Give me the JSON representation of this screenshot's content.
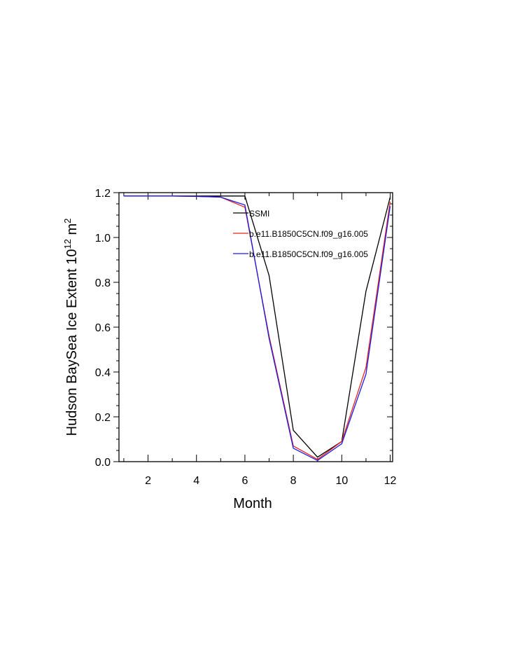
{
  "chart_data": {
    "type": "line",
    "title": "",
    "xlabel": "Month",
    "ylabel_main": "Hudson BaySea Ice Extent 10",
    "ylabel_sup": "12",
    "ylabel_unit": " m",
    "ylabel_unit_sup": "2",
    "xlim": [
      0.8,
      12.1
    ],
    "ylim": [
      0.0,
      1.2
    ],
    "xticks": [
      2,
      4,
      6,
      8,
      10,
      12
    ],
    "xtick_labels": [
      "2",
      "4",
      "6",
      "8",
      "10",
      "12"
    ],
    "yticks": [
      0.0,
      0.2,
      0.4,
      0.6,
      0.8,
      1.0,
      1.2
    ],
    "ytick_labels": [
      "0.0",
      "0.2",
      "0.4",
      "0.6",
      "0.8",
      "1.0",
      "1.2"
    ],
    "grid": false,
    "legend_position": "top-right-inside",
    "x": [
      1,
      2,
      3,
      4,
      5,
      6,
      7,
      8,
      9,
      10,
      11,
      12
    ],
    "series": [
      {
        "name": "SSMI",
        "color": "#000000",
        "values": [
          1.185,
          1.185,
          1.185,
          1.185,
          1.185,
          1.185,
          0.83,
          0.14,
          0.02,
          0.09,
          0.76,
          1.18
        ]
      },
      {
        "name": "b.e11.B1850C5CN.f09_g16.005",
        "color": "#e8241c",
        "values": [
          1.185,
          1.185,
          1.185,
          1.183,
          1.18,
          1.135,
          0.56,
          0.07,
          0.01,
          0.09,
          0.42,
          1.16
        ]
      },
      {
        "name": "b.e11.B1850C5CN.f09_g16.005",
        "color": "#1a1ae6",
        "values": [
          1.185,
          1.185,
          1.185,
          1.183,
          1.18,
          1.145,
          0.55,
          0.06,
          0.005,
          0.08,
          0.39,
          1.14
        ]
      }
    ]
  }
}
